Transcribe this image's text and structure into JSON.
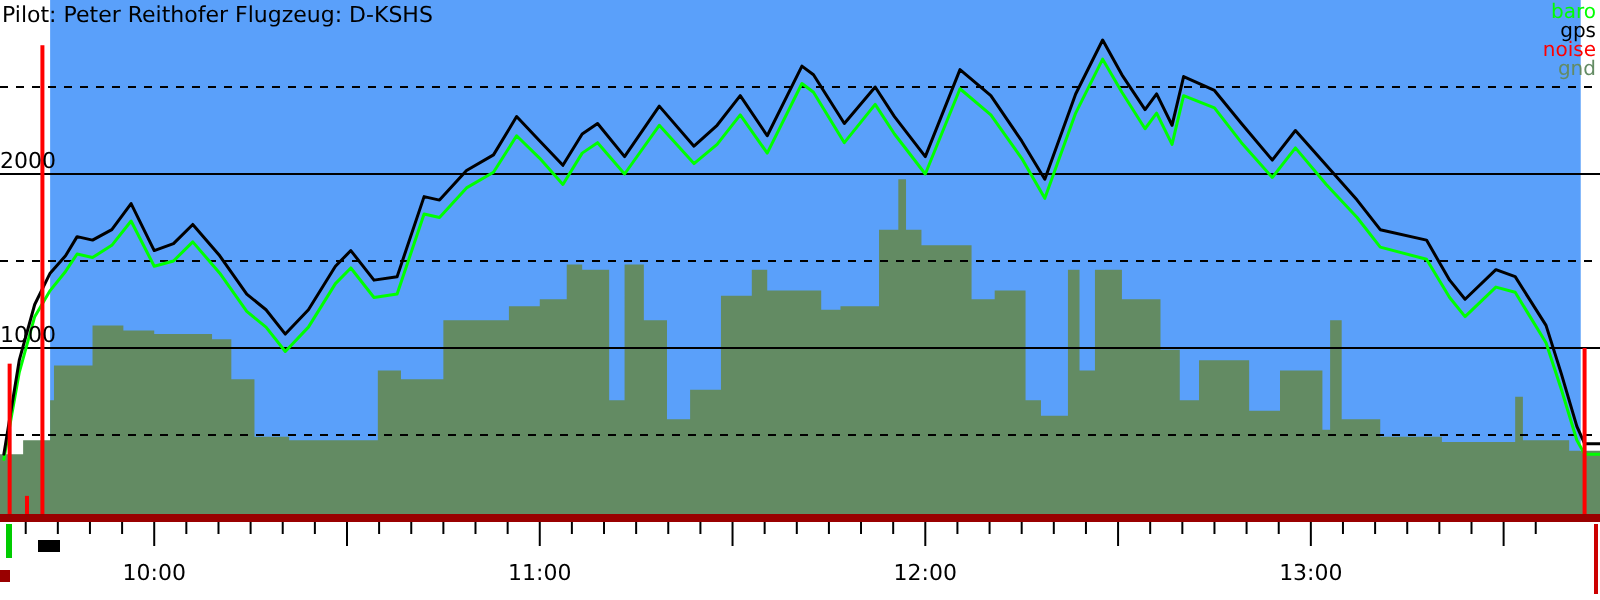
{
  "chart_data": {
    "type": "line",
    "title": "Pilot: Peter Reithofer Flugzeug: D-KSHS",
    "xlim": [
      9.6,
      13.75
    ],
    "ylim": [
      0,
      3000
    ],
    "xticks": [
      {
        "value": 9.6667,
        "label": null
      },
      {
        "value": 9.75,
        "label": null
      },
      {
        "value": 9.8333,
        "label": null
      },
      {
        "value": 9.9167,
        "label": null
      },
      {
        "value": 10,
        "label": "10:00"
      },
      {
        "value": 10.0833,
        "label": null
      },
      {
        "value": 10.1667,
        "label": null
      },
      {
        "value": 10.25,
        "label": null
      },
      {
        "value": 10.3333,
        "label": null
      },
      {
        "value": 10.4167,
        "label": null
      },
      {
        "value": 10.5,
        "label": null
      },
      {
        "value": 10.5833,
        "label": null
      },
      {
        "value": 10.6667,
        "label": null
      },
      {
        "value": 10.75,
        "label": null
      },
      {
        "value": 10.8333,
        "label": null
      },
      {
        "value": 10.9167,
        "label": null
      },
      {
        "value": 11,
        "label": "11:00"
      },
      {
        "value": 11.0833,
        "label": null
      },
      {
        "value": 11.1667,
        "label": null
      },
      {
        "value": 11.25,
        "label": null
      },
      {
        "value": 11.3333,
        "label": null
      },
      {
        "value": 11.4167,
        "label": null
      },
      {
        "value": 11.5,
        "label": null
      },
      {
        "value": 11.5833,
        "label": null
      },
      {
        "value": 11.6667,
        "label": null
      },
      {
        "value": 11.75,
        "label": null
      },
      {
        "value": 11.8333,
        "label": null
      },
      {
        "value": 11.9167,
        "label": null
      },
      {
        "value": 12,
        "label": "12:00"
      },
      {
        "value": 12.0833,
        "label": null
      },
      {
        "value": 12.1667,
        "label": null
      },
      {
        "value": 12.25,
        "label": null
      },
      {
        "value": 12.3333,
        "label": null
      },
      {
        "value": 12.4167,
        "label": null
      },
      {
        "value": 12.5,
        "label": null
      },
      {
        "value": 12.5833,
        "label": null
      },
      {
        "value": 12.6667,
        "label": null
      },
      {
        "value": 12.75,
        "label": null
      },
      {
        "value": 12.8333,
        "label": null
      },
      {
        "value": 12.9167,
        "label": null
      },
      {
        "value": 13,
        "label": "13:00"
      },
      {
        "value": 13.0833,
        "label": null
      },
      {
        "value": 13.1667,
        "label": null
      },
      {
        "value": 13.25,
        "label": null
      },
      {
        "value": 13.3333,
        "label": null
      },
      {
        "value": 13.4167,
        "label": null
      },
      {
        "value": 13.5,
        "label": null
      },
      {
        "value": 13.5833,
        "label": null
      }
    ],
    "yticks": [
      {
        "value": 500,
        "label": null
      },
      1000,
      {
        "value": 1500,
        "label": null
      },
      2000,
      {
        "value": 2500,
        "label": null
      }
    ],
    "grid": "y",
    "legend": "top right",
    "bands": [
      {
        "axis": "x",
        "from": 9.73,
        "to": 13.7,
        "color": "#5aa0fa"
      }
    ],
    "series": [
      {
        "name": "gnd",
        "type": "area",
        "color": "#638b63",
        "x": [
          9.6,
          9.66,
          9.73,
          9.74,
          9.84,
          9.92,
          10.0,
          10.15,
          10.2,
          10.26,
          10.35,
          10.58,
          10.64,
          10.75,
          10.92,
          11.0,
          11.07,
          11.11,
          11.18,
          11.22,
          11.27,
          11.33,
          11.39,
          11.47,
          11.55,
          11.59,
          11.73,
          11.78,
          11.88,
          11.93,
          11.95,
          11.99,
          12.12,
          12.18,
          12.26,
          12.3,
          12.37,
          12.4,
          12.44,
          12.51,
          12.61,
          12.66,
          12.71,
          12.84,
          12.92,
          13.03,
          13.05,
          13.08,
          13.18,
          13.34,
          13.53,
          13.55,
          13.67,
          13.75
        ],
        "values": [
          390,
          470,
          700,
          900,
          1130,
          1100,
          1080,
          1050,
          820,
          490,
          470,
          870,
          820,
          1160,
          1240,
          1280,
          1480,
          1450,
          700,
          1480,
          1160,
          590,
          760,
          1300,
          1450,
          1330,
          1220,
          1240,
          1680,
          1970,
          1680,
          1590,
          1280,
          1330,
          700,
          610,
          1450,
          870,
          1450,
          1280,
          990,
          700,
          930,
          640,
          870,
          530,
          1160,
          590,
          490,
          460,
          720,
          470,
          410,
          390
        ]
      },
      {
        "name": "baro",
        "color": "#00ff00",
        "x": [
          9.61,
          9.65,
          9.69,
          9.73,
          9.77,
          9.8,
          9.84,
          9.89,
          9.94,
          10.0,
          10.05,
          10.1,
          10.17,
          10.24,
          10.29,
          10.34,
          10.4,
          10.47,
          10.51,
          10.57,
          10.63,
          10.7,
          10.74,
          10.81,
          10.88,
          10.94,
          11.0,
          11.06,
          11.11,
          11.15,
          11.22,
          11.31,
          11.4,
          11.46,
          11.52,
          11.59,
          11.68,
          11.71,
          11.79,
          11.87,
          11.92,
          12.0,
          12.09,
          12.17,
          12.25,
          12.31,
          12.39,
          12.46,
          12.51,
          12.57,
          12.6,
          12.64,
          12.67,
          12.75,
          12.82,
          12.9,
          12.96,
          13.04,
          13.12,
          13.18,
          13.3,
          13.36,
          13.4,
          13.48,
          13.53,
          13.61,
          13.65,
          13.69,
          13.71,
          13.75
        ],
        "values": [
          360,
          860,
          1180,
          1330,
          1440,
          1540,
          1520,
          1590,
          1730,
          1470,
          1500,
          1610,
          1430,
          1210,
          1120,
          980,
          1120,
          1370,
          1460,
          1290,
          1310,
          1770,
          1750,
          1920,
          2010,
          2220,
          2090,
          1940,
          2120,
          2180,
          2000,
          2280,
          2060,
          2170,
          2340,
          2120,
          2520,
          2470,
          2180,
          2400,
          2230,
          2000,
          2490,
          2340,
          2090,
          1860,
          2350,
          2660,
          2470,
          2260,
          2350,
          2170,
          2450,
          2380,
          2180,
          1980,
          2150,
          1940,
          1750,
          1580,
          1510,
          1290,
          1180,
          1350,
          1320,
          1030,
          760,
          470,
          390,
          390
        ]
      },
      {
        "name": "gps",
        "color": "#000000",
        "x": [
          9.61,
          9.65,
          9.69,
          9.73,
          9.77,
          9.8,
          9.84,
          9.89,
          9.94,
          10.0,
          10.05,
          10.1,
          10.17,
          10.24,
          10.29,
          10.34,
          10.4,
          10.47,
          10.51,
          10.57,
          10.63,
          10.7,
          10.74,
          10.81,
          10.88,
          10.94,
          11.0,
          11.06,
          11.11,
          11.15,
          11.22,
          11.31,
          11.4,
          11.46,
          11.52,
          11.59,
          11.68,
          11.71,
          11.79,
          11.87,
          11.92,
          12.0,
          12.09,
          12.17,
          12.25,
          12.31,
          12.39,
          12.46,
          12.51,
          12.57,
          12.6,
          12.64,
          12.67,
          12.75,
          12.82,
          12.9,
          12.96,
          13.04,
          13.12,
          13.18,
          13.3,
          13.36,
          13.4,
          13.48,
          13.53,
          13.61,
          13.65,
          13.69,
          13.71,
          13.75
        ],
        "values": [
          390,
          930,
          1250,
          1430,
          1530,
          1640,
          1620,
          1680,
          1830,
          1560,
          1600,
          1710,
          1530,
          1310,
          1220,
          1080,
          1220,
          1470,
          1560,
          1390,
          1410,
          1870,
          1850,
          2020,
          2110,
          2330,
          2190,
          2050,
          2230,
          2290,
          2100,
          2390,
          2160,
          2280,
          2450,
          2220,
          2620,
          2570,
          2290,
          2500,
          2330,
          2100,
          2600,
          2450,
          2190,
          1970,
          2460,
          2770,
          2570,
          2370,
          2460,
          2280,
          2560,
          2480,
          2290,
          2080,
          2250,
          2050,
          1850,
          1680,
          1620,
          1390,
          1280,
          1450,
          1410,
          1130,
          850,
          550,
          450,
          450
        ]
      },
      {
        "name": "noise",
        "type": "bar",
        "color": "#ff0000",
        "x": [
          9.625,
          9.67,
          9.71,
          13.71
        ],
        "values": [
          910,
          150,
          2740,
          1000
        ]
      }
    ]
  }
}
